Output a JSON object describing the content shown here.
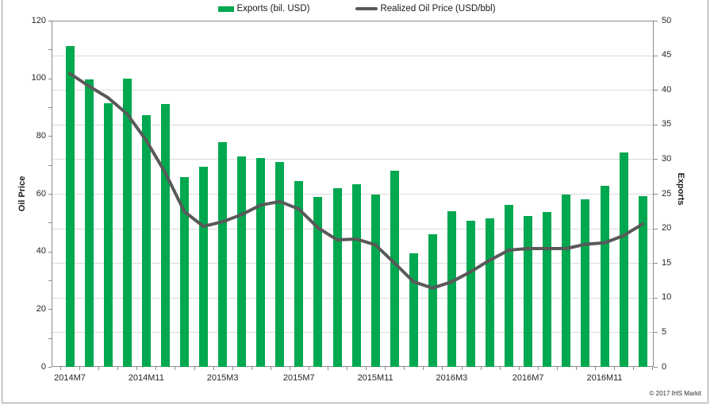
{
  "chart": {
    "legend": [
      {
        "label": "Exports (bil. USD)",
        "color": "#00A84F",
        "shape": "bar-swatch"
      },
      {
        "label": "Realized Oil Price (USD/bbl)",
        "color": "#595959",
        "shape": "line-swatch"
      }
    ],
    "left_axis": {
      "title": "Oil Price",
      "min": 0,
      "max": 120,
      "label_step": 20,
      "tick_step": 10
    },
    "right_axis": {
      "title": "Exports",
      "min": 0,
      "max": 50,
      "label_step": 5,
      "tick_step": 5
    },
    "copyright": "© 2017 IHS Markit"
  },
  "chart_data": {
    "type": "bar+line",
    "title": "",
    "categories": [
      "2014M7",
      "2014M8",
      "2014M9",
      "2014M10",
      "2014M11",
      "2014M12",
      "2015M1",
      "2015M2",
      "2015M3",
      "2015M4",
      "2015M5",
      "2015M6",
      "2015M7",
      "2015M8",
      "2015M9",
      "2015M10",
      "2015M11",
      "2015M12",
      "2016M1",
      "2016M2",
      "2016M3",
      "2016M4",
      "2016M5",
      "2016M6",
      "2016M7",
      "2016M8",
      "2016M9",
      "2016M10",
      "2016M11",
      "2016M12",
      "2017M1"
    ],
    "x_tick_labels": [
      "2014M7",
      "2014M11",
      "2015M3",
      "2015M7",
      "2015M11",
      "2016M3",
      "2016M7",
      "2016M11"
    ],
    "x_label_every": 4,
    "grid": true,
    "legend_position": "top",
    "left_ylim": [
      0,
      120
    ],
    "right_ylim": [
      0,
      50
    ],
    "series": [
      {
        "name": "Exports (bil. USD)",
        "type": "bar",
        "axis": "right",
        "color": "#00A84F",
        "values": [
          46.3,
          41.5,
          38.1,
          41.6,
          36.4,
          38.0,
          27.4,
          28.9,
          32.5,
          30.4,
          30.2,
          29.6,
          26.8,
          24.6,
          25.8,
          26.4,
          24.9,
          28.3,
          16.4,
          19.2,
          22.5,
          21.1,
          21.4,
          23.4,
          21.8,
          22.4,
          24.9,
          24.2,
          26.1,
          31.0,
          24.7
        ]
      },
      {
        "name": "Realized Oil Price (USD/bbl)",
        "type": "line",
        "axis": "left",
        "color": "#595959",
        "values": [
          101.7,
          97.3,
          93.3,
          87.7,
          78.5,
          67.3,
          53.8,
          48.7,
          50.3,
          52.8,
          56.1,
          57.3,
          54.7,
          48.2,
          44.0,
          44.3,
          42.3,
          36.0,
          29.5,
          27.3,
          29.5,
          33.0,
          37.0,
          40.5,
          41.0,
          41.0,
          41.0,
          42.5,
          43.0,
          45.5,
          49.5
        ]
      }
    ]
  }
}
